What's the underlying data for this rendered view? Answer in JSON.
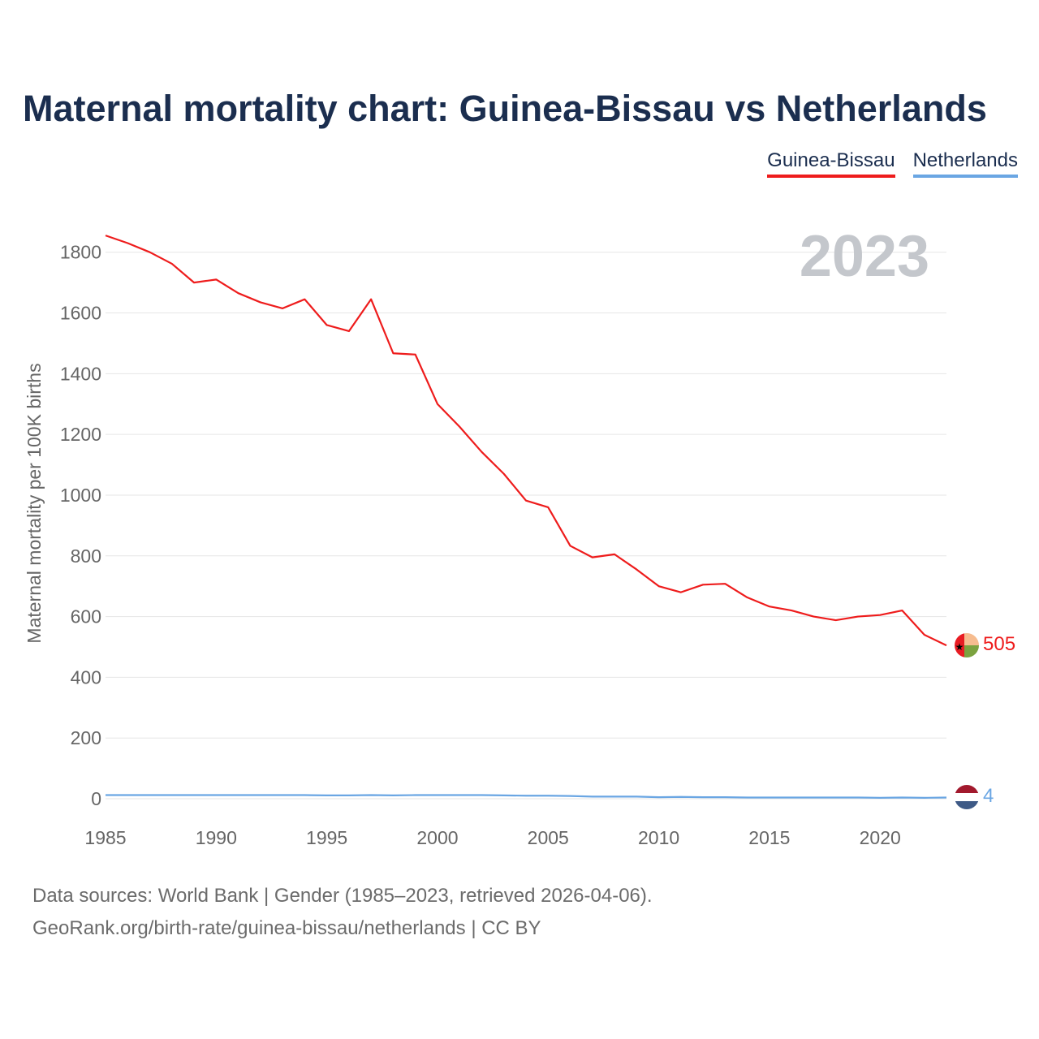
{
  "title": "Maternal mortality chart: Guinea-Bissau vs Netherlands",
  "year_label": "2023",
  "legend": [
    {
      "name": "Guinea-Bissau",
      "color": "#ee1c1c"
    },
    {
      "name": "Netherlands",
      "color": "#6aa6e3"
    }
  ],
  "footer": {
    "line1": "Data sources: World Bank | Gender (1985–2023, retrieved 2026-04-06).",
    "line2": "GeoRank.org/birth-rate/guinea-bissau/netherlands | CC BY"
  },
  "chart_data": {
    "type": "line",
    "title": "Maternal mortality chart: Guinea-Bissau vs Netherlands",
    "xlabel": "",
    "ylabel": "Maternal mortality per 100K births",
    "xlim": [
      1985,
      2023
    ],
    "ylim": [
      0,
      1850
    ],
    "x_ticks": [
      1985,
      1990,
      1995,
      2000,
      2005,
      2010,
      2015,
      2020
    ],
    "y_ticks": [
      0,
      200,
      400,
      600,
      800,
      1000,
      1200,
      1400,
      1600,
      1800
    ],
    "grid": true,
    "x": [
      1985,
      1986,
      1987,
      1988,
      1989,
      1990,
      1991,
      1992,
      1993,
      1994,
      1995,
      1996,
      1997,
      1998,
      1999,
      2000,
      2001,
      2002,
      2003,
      2004,
      2005,
      2006,
      2007,
      2008,
      2009,
      2010,
      2011,
      2012,
      2013,
      2014,
      2015,
      2016,
      2017,
      2018,
      2019,
      2020,
      2021,
      2022,
      2023
    ],
    "series": [
      {
        "name": "Guinea-Bissau",
        "color": "#ee1c1c",
        "end_label": "505",
        "values": [
          1855,
          1830,
          1800,
          1762,
          1700,
          1710,
          1665,
          1635,
          1615,
          1645,
          1560,
          1540,
          1645,
          1467,
          1463,
          1300,
          1225,
          1142,
          1070,
          982,
          960,
          833,
          795,
          805,
          755,
          700,
          680,
          705,
          708,
          663,
          633,
          620,
          600,
          588,
          600,
          605,
          620,
          540,
          505
        ]
      },
      {
        "name": "Netherlands",
        "color": "#6aa6e3",
        "end_label": "4",
        "values": [
          12,
          12,
          12,
          12,
          12,
          12,
          12,
          12,
          12,
          12,
          11,
          11,
          12,
          11,
          12,
          12,
          12,
          12,
          11,
          10,
          10,
          9,
          7,
          7,
          7,
          5,
          6,
          5,
          5,
          4,
          4,
          4,
          4,
          4,
          4,
          3,
          4,
          3,
          4
        ]
      }
    ]
  }
}
